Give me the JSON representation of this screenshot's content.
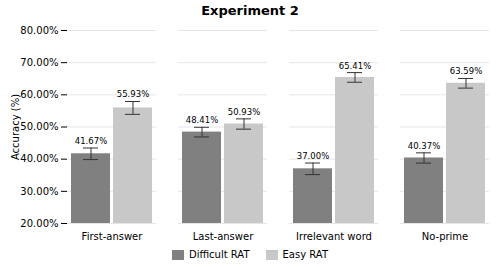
{
  "chart_data": {
    "type": "bar",
    "title": "Experiment 2",
    "ylabel": "Accuracy (%)",
    "categories": [
      "First-answer",
      "Last-answer",
      "Irrelevant word",
      "No-prime"
    ],
    "series": [
      {
        "name": "Difficult RAT",
        "color": "#808080",
        "values": [
          41.67,
          48.41,
          37.0,
          40.37
        ],
        "errors": [
          1.8,
          1.5,
          1.8,
          1.6
        ],
        "value_labels": [
          "41.67%",
          "48.41%",
          "37.00%",
          "40.37%"
        ]
      },
      {
        "name": "Easy RAT",
        "color": "#c8c8c8",
        "values": [
          55.93,
          50.93,
          65.41,
          63.59
        ],
        "errors": [
          2.0,
          1.6,
          1.5,
          1.5
        ],
        "value_labels": [
          "55.93%",
          "50.93%",
          "65.41%",
          "63.59%"
        ]
      }
    ],
    "ylim": [
      20,
      80
    ],
    "yticks": [
      {
        "value": 20,
        "label": "20.00%"
      },
      {
        "value": 30,
        "label": "30.00%"
      },
      {
        "value": 40,
        "label": "40.00%"
      },
      {
        "value": 50,
        "label": "50.00%"
      },
      {
        "value": 60,
        "label": "60.00%"
      },
      {
        "value": 70,
        "label": "70.00%"
      },
      {
        "value": 80,
        "label": "80.00%"
      }
    ],
    "grid": true,
    "data_labels": true,
    "legend": "bottom"
  }
}
